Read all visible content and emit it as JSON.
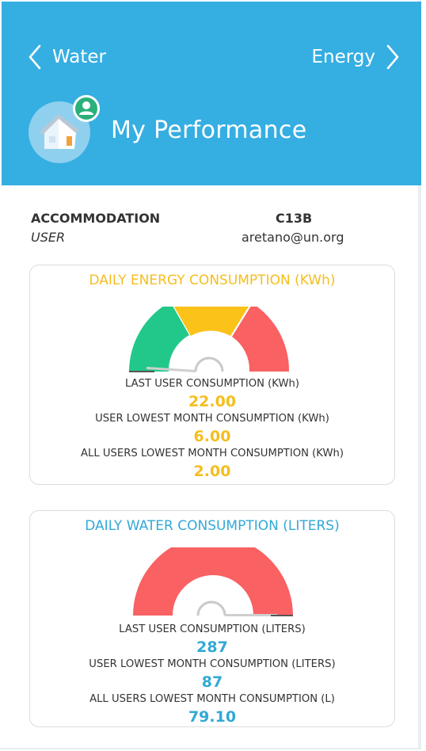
{
  "header": {
    "back_label": "Water",
    "next_label": "Energy",
    "title": "My Performance",
    "color": "#35aee2"
  },
  "info": {
    "accommodation_label": "ACCOMMODATION",
    "accommodation_value": "USER",
    "code": "C13B",
    "email": "aretano@un.org"
  },
  "energy": {
    "title": "DAILY ENERGY CONSUMPTION (KWh)",
    "last_label": "LAST USER CONSUMPTION (KWh)",
    "last_value": "22.00",
    "lowest_label": "USER LOWEST MONTH CONSUMPTION (KWh)",
    "lowest_value": "6.00",
    "all_label": "ALL USERS LOWEST MONTH CONSUMPTION (KWh)",
    "all_value": "2.00",
    "accent_color": "#f4be1e",
    "gauge_colors": [
      "#22c88a",
      "#fbc21a",
      "#f96163"
    ]
  },
  "water": {
    "title": "DAILY WATER CONSUMPTION (LITERS)",
    "last_label": "LAST USER CONSUMPTION (LITERS)",
    "last_value": "287",
    "lowest_label": "USER LOWEST MONTH CONSUMPTION (LITERS)",
    "lowest_value": "87",
    "all_label": "ALL USERS LOWEST MONTH CONSUMPTION (L)",
    "all_value": "79.10",
    "accent_color": "#32a9d6",
    "gauge_colors": [
      "#f96163"
    ]
  }
}
